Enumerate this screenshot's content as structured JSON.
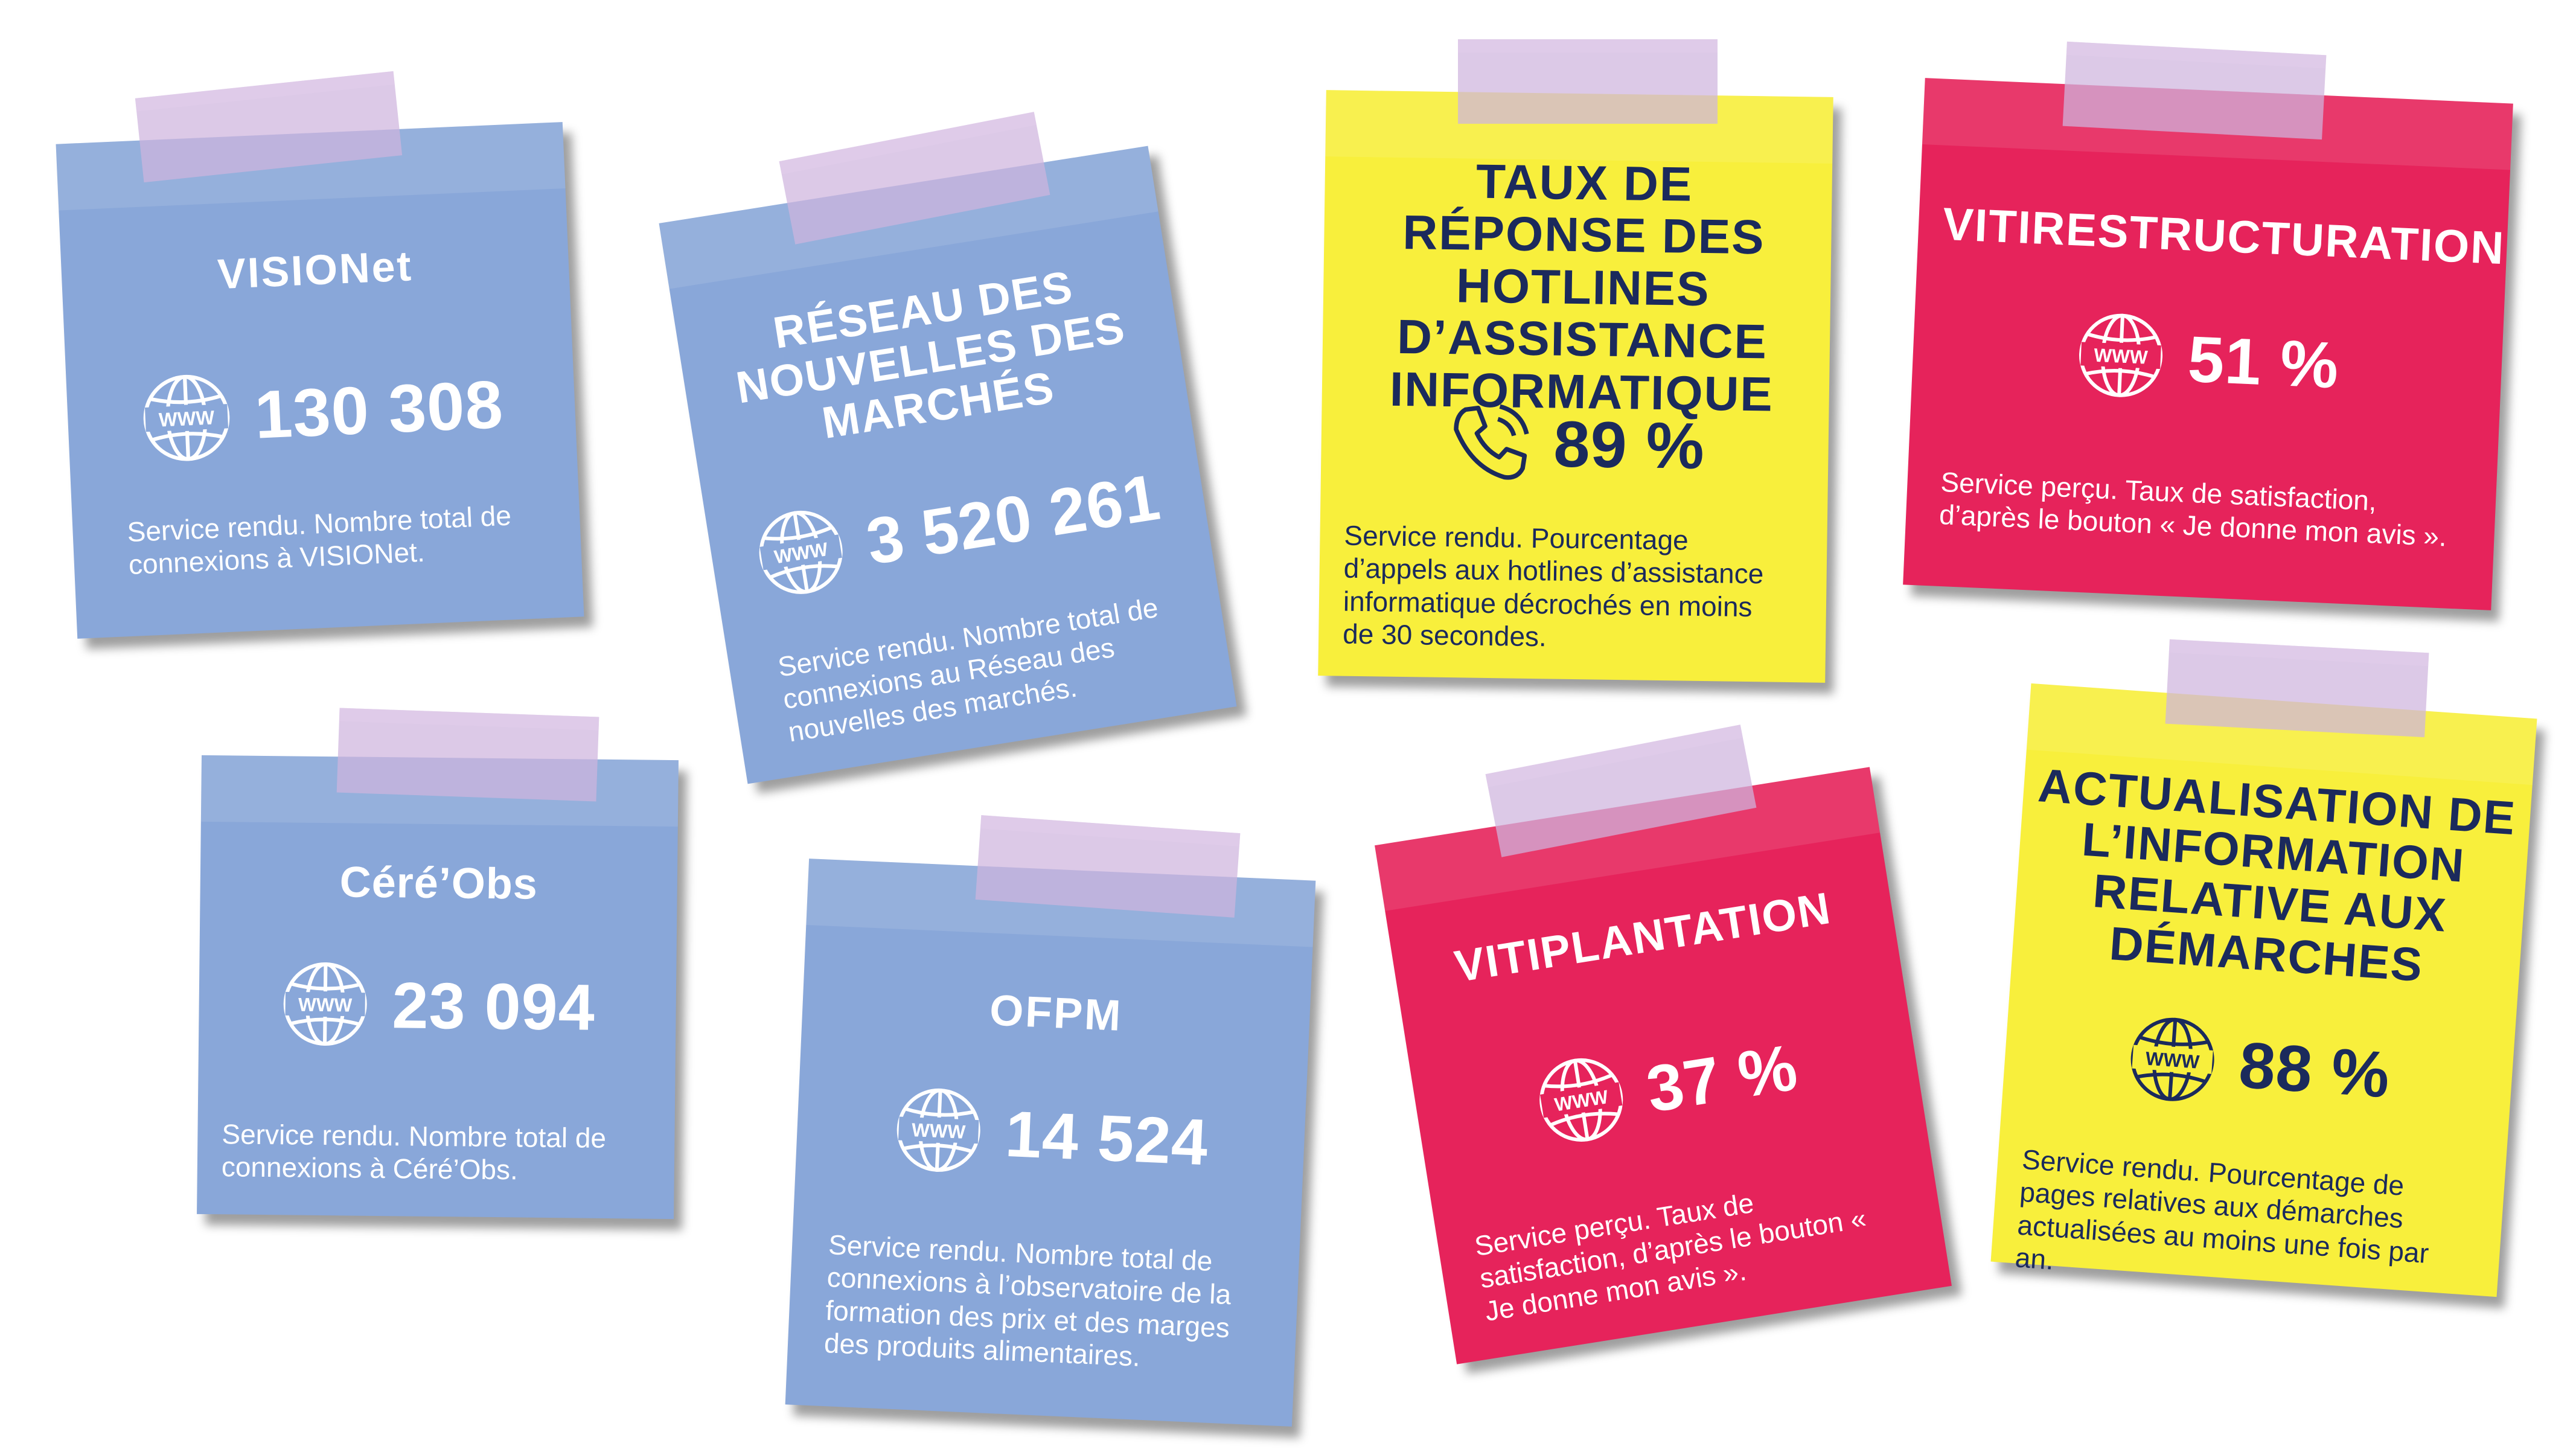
{
  "cards": {
    "visionet": {
      "title": "VISIONet",
      "value": "130 308",
      "icon": "www-globe-icon",
      "desc": "Service rendu. Nombre total de connexions à VISIONet."
    },
    "rnm": {
      "title": "RÉSEAU DES NOUVELLES DES MARCHÉS",
      "value": "3 520 261",
      "icon": "www-globe-icon",
      "desc": "Service rendu. Nombre total de connexions au Réseau des nouvelles des marchés."
    },
    "hotlines": {
      "title": "TAUX DE RÉPONSE DES HOTLINES D’ASSISTANCE INFORMATIQUE",
      "value": "89 %",
      "icon": "phone-icon",
      "desc": "Service rendu. Pourcentage d’appels aux hotlines d’assistance informatique décrochés en moins de 30 secondes."
    },
    "vitirestructuration": {
      "title": "VITIRESTRUCTURATION",
      "value": "51 %",
      "icon": "www-globe-icon",
      "desc": "Service perçu. Taux de satisfaction, d’après le bouton « Je donne mon avis »."
    },
    "cereobs": {
      "title": "Céré’Obs",
      "value": "23 094",
      "icon": "www-globe-icon",
      "desc": "Service rendu. Nombre total de connexions à Céré’Obs."
    },
    "ofpm": {
      "title": "OFPM",
      "value": "14 524",
      "icon": "www-globe-icon",
      "desc": "Service rendu. Nombre total de connexions à l’observatoire de la formation des prix et des marges des produits alimentaires."
    },
    "vitiplantation": {
      "title": "VITIPLANTATION",
      "value": "37 %",
      "icon": "www-globe-icon",
      "desc": "Service perçu. Taux de satisfaction, d’après le bouton « Je donne mon avis »."
    },
    "actualisation": {
      "title": "ACTUALISATION DE L’INFORMATION RELATIVE AUX DÉMARCHES",
      "value": "88 %",
      "icon": "www-globe-icon",
      "desc": "Service rendu. Pourcentage de pages relatives aux démarches actualisées au moins une fois par an."
    }
  },
  "colors": {
    "blue": "#89a7d9",
    "yellow": "#f8ef3c",
    "pink": "#e6235b",
    "navy": "#1b2a5c",
    "tape": "#cfb4de"
  }
}
